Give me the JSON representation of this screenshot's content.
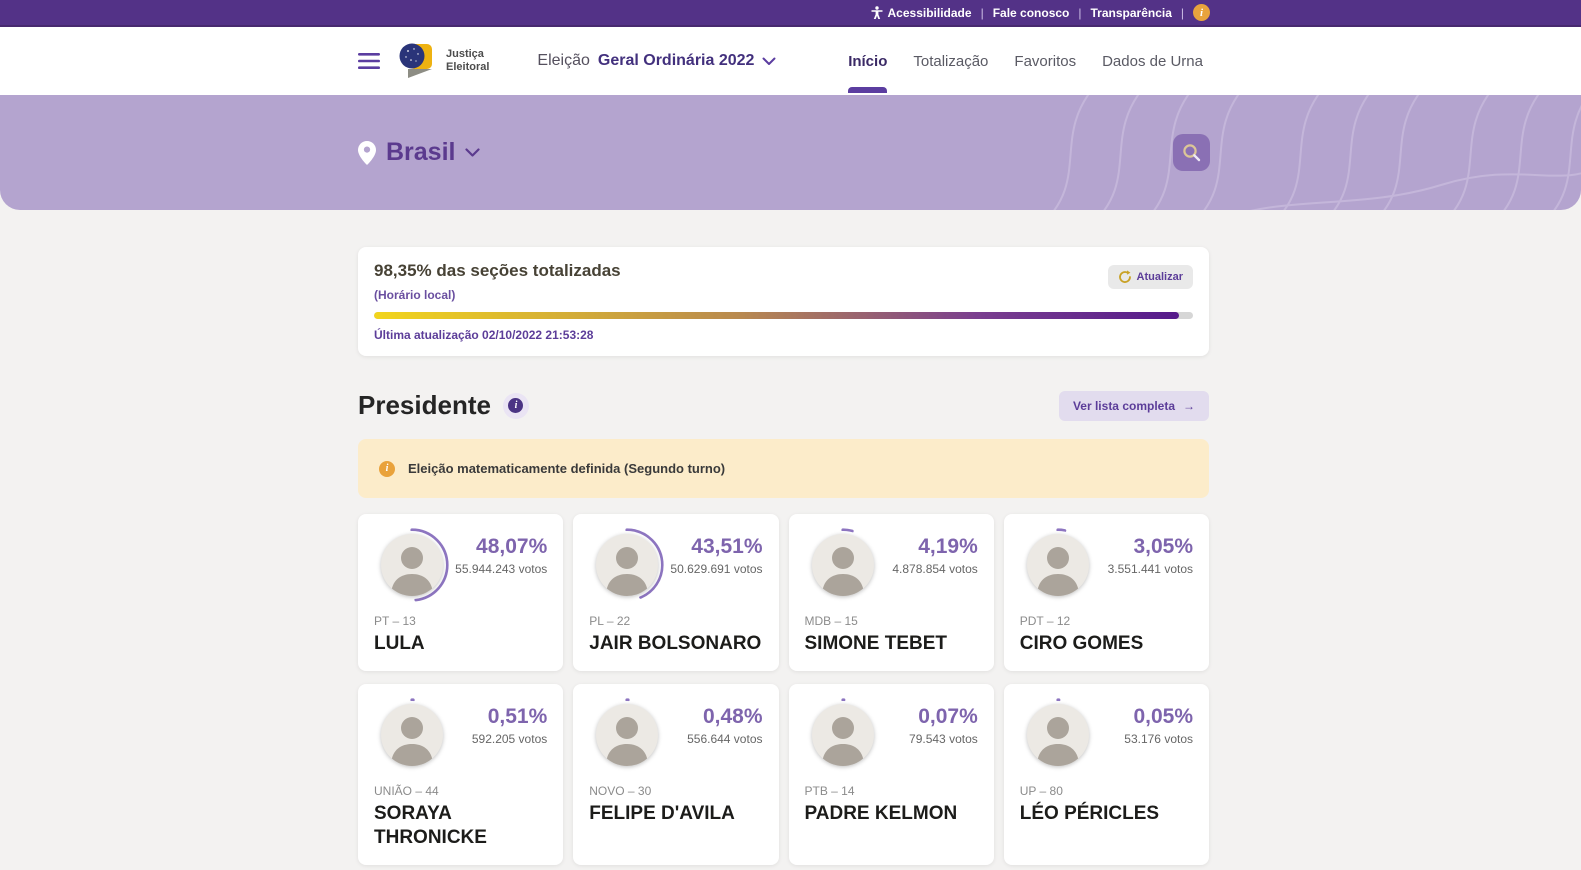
{
  "topbar": {
    "links": [
      "Acessibilidade",
      "Fale conosco",
      "Transparência"
    ],
    "separator": "|",
    "info_glyph": "i"
  },
  "header": {
    "brand_line1": "Justiça",
    "brand_line2": "Eleitoral",
    "election_prefix": "Eleição",
    "election_name": "Geral Ordinária 2022",
    "nav": [
      {
        "label": "Início",
        "active": true
      },
      {
        "label": "Totalização",
        "active": false
      },
      {
        "label": "Favoritos",
        "active": false
      },
      {
        "label": "Dados de Urna",
        "active": false
      }
    ]
  },
  "hero": {
    "location": "Brasil"
  },
  "totalization": {
    "title": "98,35% das seções totalizadas",
    "timezone_note": "(Horário local)",
    "progress_percent": 98.35,
    "last_update": "Última atualização 02/10/2022 21:53:28",
    "refresh_label": "Atualizar"
  },
  "results_section": {
    "title": "Presidente",
    "view_full_list_label": "Ver lista completa",
    "alert_message": "Eleição matematicamente definida (Segundo turno)",
    "info_glyph": "i"
  },
  "candidates": [
    {
      "name": "LULA",
      "party": "PT – 13",
      "percent_label": "48,07%",
      "percent_value": 48.07,
      "votes_label": "55.944.243 votos"
    },
    {
      "name": "JAIR BOLSONARO",
      "party": "PL – 22",
      "percent_label": "43,51%",
      "percent_value": 43.51,
      "votes_label": "50.629.691 votos"
    },
    {
      "name": "SIMONE TEBET",
      "party": "MDB – 15",
      "percent_label": "4,19%",
      "percent_value": 4.19,
      "votes_label": "4.878.854 votos"
    },
    {
      "name": "CIRO GOMES",
      "party": "PDT – 12",
      "percent_label": "3,05%",
      "percent_value": 3.05,
      "votes_label": "3.551.441 votos"
    },
    {
      "name": "SORAYA THRONICKE",
      "party": "UNIÃO – 44",
      "percent_label": "0,51%",
      "percent_value": 0.51,
      "votes_label": "592.205 votos"
    },
    {
      "name": "FELIPE D'AVILA",
      "party": "NOVO – 30",
      "percent_label": "0,48%",
      "percent_value": 0.48,
      "votes_label": "556.644 votos"
    },
    {
      "name": "PADRE KELMON",
      "party": "PTB – 14",
      "percent_label": "0,07%",
      "percent_value": 0.07,
      "votes_label": "79.543 votos"
    },
    {
      "name": "LÉO PÉRICLES",
      "party": "UP – 80",
      "percent_label": "0,05%",
      "percent_value": 0.05,
      "votes_label": "53.176 votos"
    }
  ],
  "icons": {
    "arrow_right": "→",
    "accessibility": "accessibility-person",
    "menu": "hamburger",
    "chevron": "chevron-down",
    "location": "map-pin",
    "search": "magnifier",
    "refresh": "refresh-arrow"
  },
  "colors": {
    "topbar_bg": "#533287",
    "hero_bg": "#b4a4cf",
    "accent_purple": "#5c3d99",
    "percent_purple": "#7e64ad",
    "ring_purple": "#8d75c0",
    "progress_from": "#f2d51c",
    "progress_to": "#551a8b",
    "alert_bg": "#fcecca",
    "alert_icon": "#e9a23b",
    "page_bg": "#f3f2f1"
  }
}
